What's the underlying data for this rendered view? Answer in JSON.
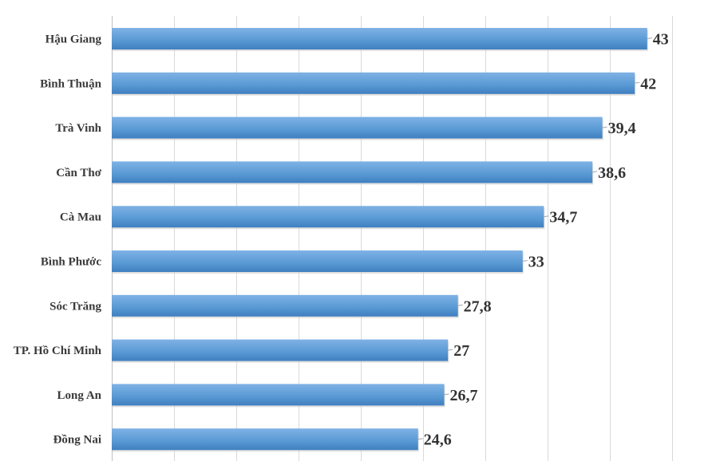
{
  "chart_data": {
    "type": "bar",
    "orientation": "horizontal",
    "title": "",
    "xlabel": "",
    "ylabel": "",
    "categories": [
      "Hậu Giang",
      "Bình Thuận",
      "Trà Vinh",
      "Cần Thơ",
      "Cà Mau",
      "Bình Phước",
      "Sóc Trăng",
      "TP. Hồ Chí Minh",
      "Long An",
      "Đồng Nai"
    ],
    "values": [
      43,
      42,
      39.4,
      38.6,
      34.7,
      33,
      27.8,
      27,
      26.7,
      24.6
    ],
    "value_labels": [
      "43",
      "42",
      "39,4",
      "38,6",
      "34,7",
      "33",
      "27,8",
      "27",
      "26,7",
      "24,6"
    ],
    "xlim": [
      0,
      45
    ],
    "grid": true,
    "legend": "none",
    "bar_color": "#5b9bd5",
    "bar_color_light": "#7fb2e5",
    "bar_color_dark": "#3f7fc0"
  }
}
